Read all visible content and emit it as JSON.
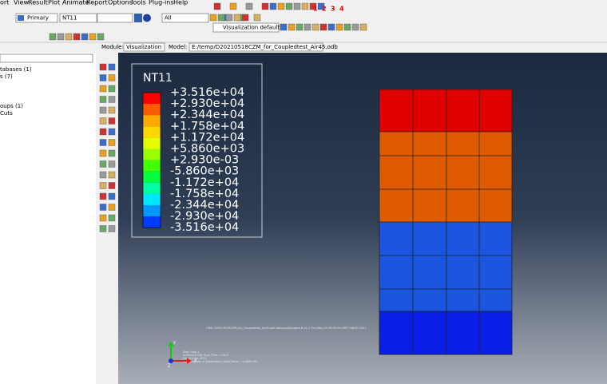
{
  "menu": [
    "ort",
    "View",
    "Result",
    "Plot",
    "Animate",
    "Report",
    "Options",
    "Tools",
    "Plug-ins",
    "Help"
  ],
  "toolbar": {
    "step_type": "Primary",
    "variable": "NT11",
    "selection": "All",
    "render_style": "Visualization defaults",
    "view_numbers": [
      "1",
      "2",
      "3",
      "4"
    ]
  },
  "context": {
    "module_label": "Module:",
    "module": "Visualization",
    "model_label": "Model:",
    "model": "E:/temp/D20210518CZM_for_Coupledtest_Air45.odb"
  },
  "tree": [
    "tabases (1)",
    "s (7)",
    "oups (1)",
    "Cuts"
  ],
  "legend": {
    "title": "NT11",
    "labels": [
      "+3.516e+04",
      "+2.930e+04",
      "+2.344e+04",
      "+1.758e+04",
      "+1.172e+04",
      "+5.860e+03",
      "+2.930e-03",
      "-5.860e+03",
      "-1.172e+04",
      "-1.758e+04",
      "-2.344e+04",
      "-2.930e+04",
      "-3.516e+04"
    ],
    "colors": [
      "#ff0000",
      "#ff5c00",
      "#ffaa00",
      "#ffd800",
      "#e6ff00",
      "#9cff00",
      "#40ff00",
      "#00ff3c",
      "#00ffa0",
      "#00e6ff",
      "#0096ff",
      "#003cff"
    ]
  },
  "viewport": {
    "odb_info": "ODB: D20210518CZM_for_Coupledtest_Air45.odb    Abaqus/Standard 6.14-1    Thu May 20 08:00:00 GMT+08:00 2021",
    "state_lines": [
      "Step: Step-1",
      "Increment    100: Step Time =    100.0",
      "Primary Var: NT11",
      "Deformed Var: U   Deformation Scale Factor: +1.000e+00"
    ]
  }
}
